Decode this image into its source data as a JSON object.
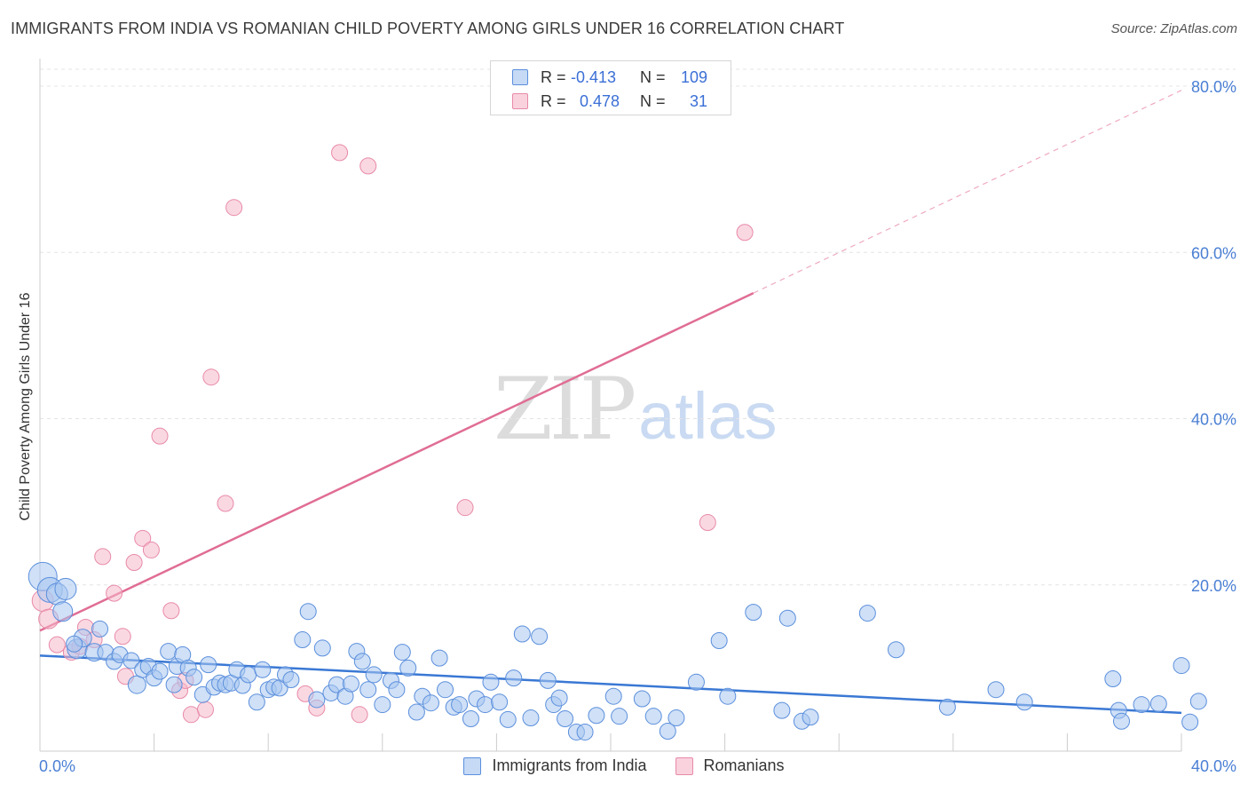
{
  "header": {
    "title": "IMMIGRANTS FROM INDIA VS ROMANIAN CHILD POVERTY AMONG GIRLS UNDER 16 CORRELATION CHART",
    "source_label": "Source:",
    "source_value": "ZipAtlas.com"
  },
  "watermark": {
    "zip": "ZIP",
    "atlas": "atlas"
  },
  "legend_top": {
    "r_label": "R =",
    "n_label": "N =",
    "rows": [
      {
        "r": "-0.413",
        "n": "109",
        "color": "#a8c6f0"
      },
      {
        "r": "0.478",
        "n": "31",
        "color": "#f5b8ca"
      }
    ]
  },
  "legend_bottom": {
    "items": [
      {
        "label": "Immigrants from India",
        "color": "#a8c6f0"
      },
      {
        "label": "Romanians",
        "color": "#f5b8ca"
      }
    ]
  },
  "colors": {
    "blue_fill": "#a8c6f0",
    "blue_stroke": "#5b8fdc",
    "blue_line": "#3a78d4",
    "pink_fill": "#f5b8ca",
    "pink_stroke": "#e88aa8",
    "pink_line": "#e06d95",
    "grid": "#e4e4e4",
    "tick_text": "#4a7fd4"
  },
  "chart_data": {
    "type": "scatter",
    "title": "IMMIGRANTS FROM INDIA VS ROMANIAN CHILD POVERTY AMONG GIRLS UNDER 16 CORRELATION CHART",
    "xlabel": "",
    "ylabel": "Child Poverty Among Girls Under 16",
    "xlim": [
      0,
      40
    ],
    "ylim": [
      0,
      80
    ],
    "x_tick_labels": [
      "0.0%",
      "40.0%"
    ],
    "y_ticks": [
      20,
      40,
      60,
      80
    ],
    "y_tick_labels": [
      "20.0%",
      "40.0%",
      "60.0%",
      "80.0%"
    ],
    "grid": true,
    "legend": "top-center",
    "series": [
      {
        "name": "Immigrants from India",
        "r": -0.413,
        "n": 109,
        "trend": {
          "x": [
            0,
            40
          ],
          "y": [
            11.5,
            4.6
          ]
        },
        "points": [
          [
            0.1,
            21.0,
            16
          ],
          [
            0.35,
            19.4,
            14
          ],
          [
            0.6,
            18.9,
            12
          ],
          [
            0.9,
            19.5,
            12
          ],
          [
            0.8,
            16.8,
            11
          ],
          [
            1.3,
            12.3,
            11
          ],
          [
            1.5,
            13.6,
            10
          ],
          [
            1.9,
            11.9,
            10
          ],
          [
            1.2,
            12.9,
            9
          ],
          [
            2.1,
            14.7,
            9
          ],
          [
            2.3,
            11.9,
            9
          ],
          [
            2.6,
            10.8,
            9
          ],
          [
            2.8,
            11.6,
            9
          ],
          [
            3.2,
            10.9,
            9
          ],
          [
            3.4,
            8.0,
            10
          ],
          [
            3.6,
            9.8,
            9
          ],
          [
            3.8,
            10.2,
            9
          ],
          [
            4.0,
            8.8,
            9
          ],
          [
            4.2,
            9.6,
            9
          ],
          [
            4.5,
            12.0,
            9
          ],
          [
            4.7,
            8.0,
            9
          ],
          [
            4.8,
            10.2,
            9
          ],
          [
            5.0,
            11.6,
            9
          ],
          [
            5.2,
            10.0,
            9
          ],
          [
            5.4,
            8.9,
            9
          ],
          [
            5.7,
            6.8,
            9
          ],
          [
            5.9,
            10.4,
            9
          ],
          [
            6.1,
            7.7,
            9
          ],
          [
            6.3,
            8.2,
            9
          ],
          [
            6.5,
            8.0,
            9
          ],
          [
            6.7,
            8.2,
            9
          ],
          [
            6.9,
            9.8,
            9
          ],
          [
            7.1,
            7.9,
            9
          ],
          [
            7.3,
            9.2,
            9
          ],
          [
            7.6,
            5.9,
            9
          ],
          [
            7.8,
            9.8,
            9
          ],
          [
            8.0,
            7.4,
            9
          ],
          [
            8.2,
            7.7,
            9
          ],
          [
            8.4,
            7.6,
            9
          ],
          [
            8.6,
            9.2,
            9
          ],
          [
            8.8,
            8.6,
            9
          ],
          [
            9.2,
            13.4,
            9
          ],
          [
            9.4,
            16.8,
            9
          ],
          [
            9.7,
            6.2,
            9
          ],
          [
            9.9,
            12.4,
            9
          ],
          [
            10.2,
            7.0,
            9
          ],
          [
            10.4,
            8.0,
            9
          ],
          [
            10.7,
            6.6,
            9
          ],
          [
            10.9,
            8.1,
            9
          ],
          [
            11.1,
            12.0,
            9
          ],
          [
            11.3,
            10.8,
            9
          ],
          [
            11.5,
            7.4,
            9
          ],
          [
            11.7,
            9.2,
            9
          ],
          [
            12.0,
            5.6,
            9
          ],
          [
            12.3,
            8.5,
            9
          ],
          [
            12.5,
            7.4,
            9
          ],
          [
            12.7,
            11.9,
            9
          ],
          [
            12.9,
            10.0,
            9
          ],
          [
            13.2,
            4.7,
            9
          ],
          [
            13.4,
            6.6,
            9
          ],
          [
            13.7,
            5.8,
            9
          ],
          [
            14.0,
            11.2,
            9
          ],
          [
            14.2,
            7.4,
            9
          ],
          [
            14.5,
            5.3,
            9
          ],
          [
            14.7,
            5.6,
            9
          ],
          [
            15.1,
            3.9,
            9
          ],
          [
            15.3,
            6.3,
            9
          ],
          [
            15.6,
            5.6,
            9
          ],
          [
            15.8,
            8.3,
            9
          ],
          [
            16.1,
            5.9,
            9
          ],
          [
            16.4,
            3.8,
            9
          ],
          [
            16.6,
            8.8,
            9
          ],
          [
            16.9,
            14.1,
            9
          ],
          [
            17.2,
            4.0,
            9
          ],
          [
            17.5,
            13.8,
            9
          ],
          [
            17.8,
            8.5,
            9
          ],
          [
            18.0,
            5.6,
            9
          ],
          [
            18.2,
            6.4,
            9
          ],
          [
            18.4,
            3.9,
            9
          ],
          [
            18.8,
            2.3,
            9
          ],
          [
            19.1,
            2.3,
            9
          ],
          [
            19.5,
            4.3,
            9
          ],
          [
            20.1,
            6.6,
            9
          ],
          [
            20.3,
            4.2,
            9
          ],
          [
            21.1,
            6.3,
            9
          ],
          [
            21.5,
            4.2,
            9
          ],
          [
            22.0,
            2.4,
            9
          ],
          [
            22.3,
            4.0,
            9
          ],
          [
            23.0,
            8.3,
            9
          ],
          [
            23.8,
            13.3,
            9
          ],
          [
            24.1,
            6.6,
            9
          ],
          [
            25.0,
            16.7,
            9
          ],
          [
            26.0,
            4.9,
            9
          ],
          [
            26.2,
            16.0,
            9
          ],
          [
            26.7,
            3.6,
            9
          ],
          [
            27.0,
            4.1,
            9
          ],
          [
            29.0,
            16.6,
            9
          ],
          [
            30.0,
            12.2,
            9
          ],
          [
            31.8,
            5.3,
            9
          ],
          [
            33.5,
            7.4,
            9
          ],
          [
            34.5,
            5.9,
            9
          ],
          [
            37.6,
            8.7,
            9
          ],
          [
            37.8,
            4.9,
            9
          ],
          [
            37.9,
            3.6,
            9
          ],
          [
            38.6,
            5.6,
            9
          ],
          [
            39.2,
            5.7,
            9
          ],
          [
            40.0,
            10.3,
            9
          ],
          [
            40.3,
            3.5,
            9
          ],
          [
            40.6,
            6.0,
            9
          ]
        ]
      },
      {
        "name": "Romanians",
        "r": 0.478,
        "n": 31,
        "trend": {
          "x": [
            0,
            25
          ],
          "y": [
            14.5,
            55.1
          ]
        },
        "trend_dashed": {
          "x": [
            25,
            40
          ],
          "y": [
            55.1,
            79.5
          ]
        },
        "points": [
          [
            0.1,
            18.1,
            12
          ],
          [
            0.3,
            15.9,
            11
          ],
          [
            0.6,
            12.8,
            9
          ],
          [
            1.1,
            11.9,
            9
          ],
          [
            1.4,
            12.6,
            9
          ],
          [
            1.6,
            14.9,
            9
          ],
          [
            1.9,
            13.4,
            9
          ],
          [
            2.2,
            23.4,
            9
          ],
          [
            2.6,
            19.0,
            9
          ],
          [
            2.9,
            13.8,
            9
          ],
          [
            3.3,
            22.7,
            9
          ],
          [
            3.6,
            25.6,
            9
          ],
          [
            3.9,
            24.2,
            9
          ],
          [
            4.2,
            37.9,
            9
          ],
          [
            4.6,
            16.9,
            9
          ],
          [
            4.9,
            7.3,
            9
          ],
          [
            5.1,
            8.5,
            9
          ],
          [
            5.3,
            4.4,
            9
          ],
          [
            5.8,
            5.0,
            9
          ],
          [
            6.0,
            45.0,
            9
          ],
          [
            6.5,
            29.8,
            9
          ],
          [
            6.8,
            65.4,
            9
          ],
          [
            9.3,
            6.9,
            9
          ],
          [
            9.7,
            5.2,
            9
          ],
          [
            10.5,
            72.0,
            9
          ],
          [
            11.2,
            4.4,
            9
          ],
          [
            11.5,
            70.4,
            9
          ],
          [
            14.9,
            29.3,
            9
          ],
          [
            23.4,
            27.5,
            9
          ],
          [
            24.7,
            62.4,
            9
          ],
          [
            3.0,
            9.0,
            9
          ]
        ]
      }
    ]
  }
}
